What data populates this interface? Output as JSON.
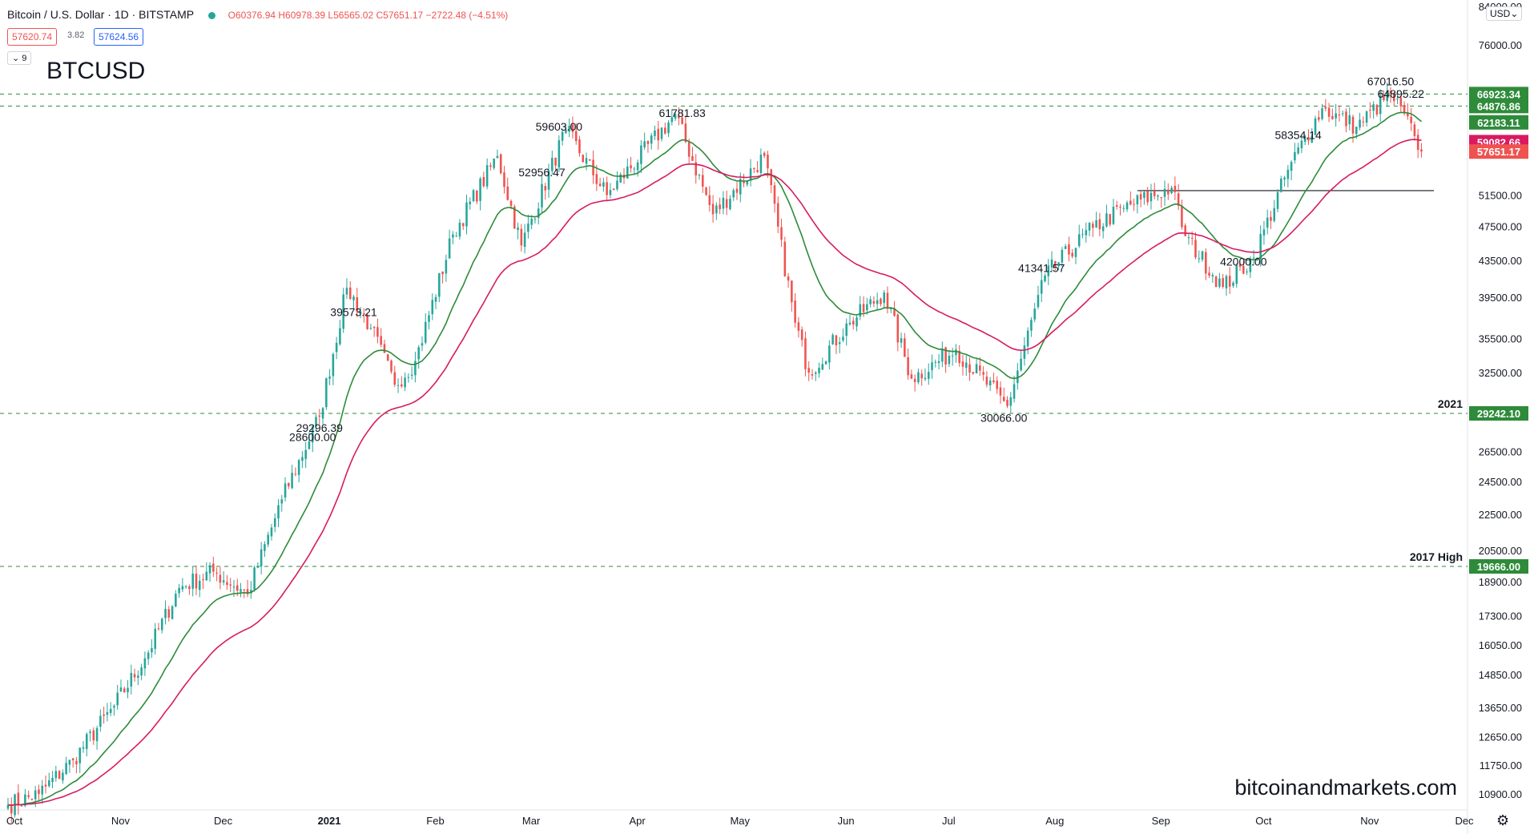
{
  "header": {
    "symbol": "Bitcoin / U.S. Dollar · 1D · BITSTAMP",
    "ohlc": "O60376.94 H60978.39 L56565.02 C57651.17 −2722.48 (−4.51%)",
    "sell_price": "57620.74",
    "spread": "3.82",
    "buy_price": "57624.56",
    "indicator_toggle": "9"
  },
  "ticker": "BTCUSD",
  "watermark": "bitcoinandmarkets.com",
  "currency_button": "USD",
  "settings_icon": "gear-icon",
  "colors": {
    "up": "#26a69a",
    "down": "#ef5350",
    "ema_fast": "#2e8b3a",
    "ema_slow": "#d81b60",
    "level_line": "#2e8b3a"
  },
  "chart_data": {
    "type": "candlestick",
    "symbol": "BTCUSD",
    "timeframe": "1D",
    "scale": "log",
    "x_axis_ticks": [
      "Oct",
      "Nov",
      "Dec",
      "2021",
      "Feb",
      "Mar",
      "Apr",
      "May",
      "Jun",
      "Jul",
      "Aug",
      "Sep",
      "Oct",
      "Nov",
      "Dec"
    ],
    "y_axis_ticks": [
      "84000.00",
      "76000.00",
      "51500.00",
      "47500.00",
      "43500.00",
      "39500.00",
      "35500.00",
      "32500.00",
      "26500.00",
      "24500.00",
      "22500.00",
      "20500.00",
      "18900.00",
      "17300.00",
      "16050.00",
      "14850.00",
      "13650.00",
      "12650.00",
      "11750.00",
      "10900.00"
    ],
    "price_labels": [
      {
        "text": "66923.34",
        "bg": "#2e8b3a"
      },
      {
        "text": "64876.86",
        "bg": "#2e8b3a"
      },
      {
        "text": "62183.11",
        "bg": "#2e8b3a"
      },
      {
        "text": "59082.66",
        "bg": "#d81b60"
      },
      {
        "text": "57651.17",
        "bg": "#ef5350"
      },
      {
        "text": "29242.10",
        "bg": "#2e8b3a"
      },
      {
        "text": "19666.00",
        "bg": "#2e8b3a"
      }
    ],
    "horizontal_levels": [
      {
        "value": 66923.34,
        "style": "dashed",
        "label": ""
      },
      {
        "value": 64876.86,
        "style": "dashed",
        "label": ""
      },
      {
        "value": 29242.1,
        "style": "dashed",
        "label": "2021"
      },
      {
        "value": 19666.0,
        "style": "dashed",
        "label": "2017 High"
      },
      {
        "value": 52100,
        "style": "solid",
        "label": ""
      }
    ],
    "annotations": [
      {
        "text": "42000.00",
        "pos": "above"
      },
      {
        "text": "58354.14",
        "pos": "above"
      },
      {
        "text": "61781.83",
        "pos": "above"
      },
      {
        "text": "64895.22",
        "pos": "above"
      },
      {
        "text": "59603.00",
        "pos": "above"
      },
      {
        "text": "30066.00",
        "pos": "below"
      },
      {
        "text": "41341.57",
        "pos": "above"
      },
      {
        "text": "28600.00",
        "pos": "below"
      },
      {
        "text": "29296.39",
        "pos": "below"
      },
      {
        "text": "52956.47",
        "pos": "above"
      },
      {
        "text": "39573.21",
        "pos": "below"
      },
      {
        "text": "67016.50",
        "pos": "above"
      }
    ],
    "price_path": [
      [
        "2020-10-01",
        10600
      ],
      [
        "2020-10-10",
        10900
      ],
      [
        "2020-10-20",
        11900
      ],
      [
        "2020-11-01",
        13700
      ],
      [
        "2020-11-10",
        15500
      ],
      [
        "2020-11-20",
        18600
      ],
      [
        "2020-11-30",
        19400
      ],
      [
        "2020-12-10",
        18300
      ],
      [
        "2020-12-20",
        23400
      ],
      [
        "2020-12-31",
        29000
      ],
      [
        "2021-01-08",
        40500
      ],
      [
        "2021-01-15",
        36500
      ],
      [
        "2021-01-22",
        31500
      ],
      [
        "2021-01-28",
        33500
      ],
      [
        "2021-02-08",
        46500
      ],
      [
        "2021-02-21",
        57000
      ],
      [
        "2021-02-28",
        45200
      ],
      [
        "2021-03-13",
        61000
      ],
      [
        "2021-03-25",
        51500
      ],
      [
        "2021-04-14",
        63500
      ],
      [
        "2021-04-25",
        49000
      ],
      [
        "2021-05-10",
        57000
      ],
      [
        "2021-05-19",
        37000
      ],
      [
        "2021-05-23",
        32500
      ],
      [
        "2021-06-04",
        37000
      ],
      [
        "2021-06-14",
        40000
      ],
      [
        "2021-06-22",
        32000
      ],
      [
        "2021-07-05",
        34500
      ],
      [
        "2021-07-20",
        29800
      ],
      [
        "2021-07-31",
        41800
      ],
      [
        "2021-08-14",
        47300
      ],
      [
        "2021-08-23",
        49800
      ],
      [
        "2021-09-06",
        52500
      ],
      [
        "2021-09-10",
        46300
      ],
      [
        "2021-09-21",
        40600
      ],
      [
        "2021-09-30",
        43800
      ],
      [
        "2021-10-10",
        55000
      ],
      [
        "2021-10-20",
        64500
      ],
      [
        "2021-10-30",
        61500
      ],
      [
        "2021-11-09",
        67000
      ],
      [
        "2021-11-16",
        60000
      ],
      [
        "2021-11-18",
        57651.17
      ]
    ],
    "ema_fast_period": 21,
    "ema_slow_period": 50
  }
}
